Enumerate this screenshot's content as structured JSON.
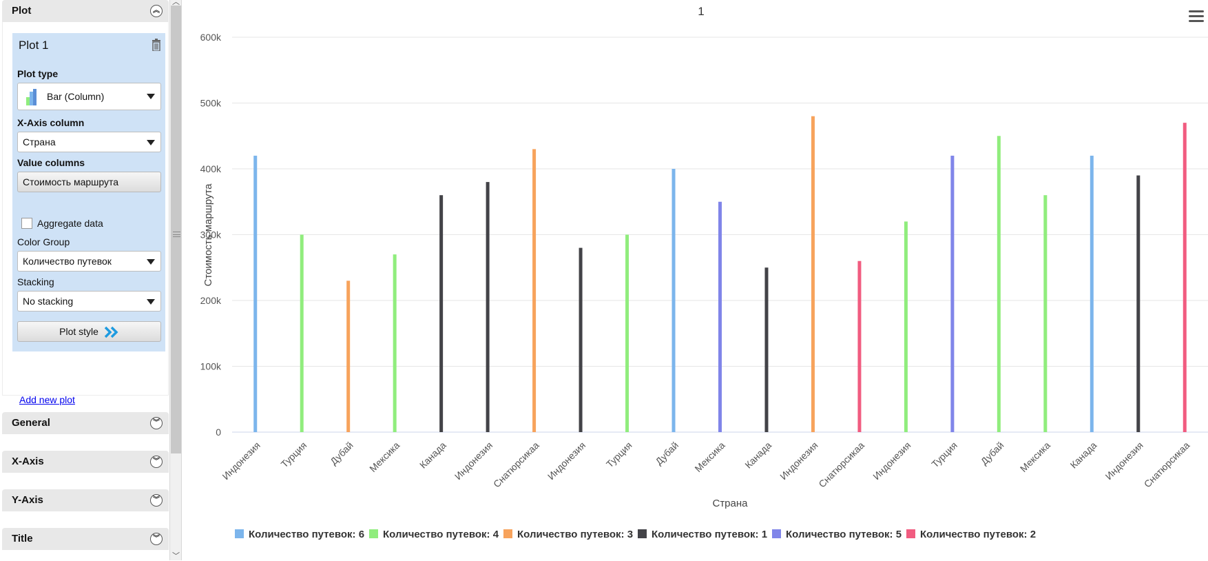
{
  "sidebar": {
    "sections": {
      "plot": "Plot",
      "general": "General",
      "xaxis": "X-Axis",
      "yaxis": "Y-Axis",
      "title": "Title"
    },
    "plot_card": {
      "title": "Plot 1",
      "plot_type_label": "Plot type",
      "plot_type_value": "Bar (Column)",
      "xaxis_column_label": "X-Axis column",
      "xaxis_column_value": "Страна",
      "value_columns_label": "Value columns",
      "value_column": "Стоимость маршрута",
      "aggregate_label": "Aggregate data",
      "aggregate_checked": false,
      "color_group_label": "Color Group",
      "color_group_value": "Количество путевок",
      "stacking_label": "Stacking",
      "stacking_value": "No stacking",
      "plot_style_button": "Plot style"
    },
    "add_plot_link": "Add new plot"
  },
  "chart_data": {
    "type": "bar",
    "title": "1",
    "xlabel": "Страна",
    "ylabel": "Стоимость маршрута",
    "ylim": [
      0,
      600000
    ],
    "y_ticks": [
      "0",
      "100k",
      "200k",
      "300k",
      "400k",
      "500k",
      "600k"
    ],
    "grid": true,
    "legend_position": "bottom",
    "categories": [
      "Индонезия",
      "Турция",
      "Дубай",
      "Мексика",
      "Канада",
      "Индонезия",
      "Снатюрсикаа",
      "Индонезия",
      "Турция",
      "Дубай",
      "Мексика",
      "Канада",
      "Индонезия",
      "Снатюрсикаа",
      "Индонезия",
      "Турция",
      "Дубай",
      "Мексика",
      "Канада",
      "Индонезия",
      "Снатюрсикаа"
    ],
    "values": [
      420000,
      300000,
      230000,
      270000,
      360000,
      380000,
      430000,
      280000,
      300000,
      400000,
      350000,
      250000,
      480000,
      260000,
      320000,
      420000,
      450000,
      360000,
      420000,
      390000,
      470000
    ],
    "groups": [
      "Количество путевок: 6",
      "Количество путевок: 4",
      "Количество путевок: 3",
      "Количество путевок: 4",
      "Количество путевок: 1",
      "Количество путевок: 1",
      "Количество путевок: 3",
      "Количество путевок: 1",
      "Количество путевок: 4",
      "Количество путевок: 6",
      "Количество путевок: 5",
      "Количество путевок: 1",
      "Количество путевок: 3",
      "Количество путевок: 2",
      "Количество путевок: 4",
      "Количество путевок: 5",
      "Количество путевок: 4",
      "Количество путевок: 4",
      "Количество путевок: 6",
      "Количество путевок: 1",
      "Количество путевок: 2"
    ],
    "series": [
      {
        "name": "Количество путевок: 6",
        "color": "#7cb5ec"
      },
      {
        "name": "Количество путевок: 4",
        "color": "#90ed7d"
      },
      {
        "name": "Количество путевок: 3",
        "color": "#f7a35c"
      },
      {
        "name": "Количество путевок: 1",
        "color": "#434348"
      },
      {
        "name": "Количество путевок: 5",
        "color": "#8085e9"
      },
      {
        "name": "Количество путевок: 2",
        "color": "#f15c80"
      }
    ]
  },
  "icons": {
    "trash": "trash-icon",
    "plot_type": "bar-chart-icon",
    "plot_style": "double-chevron-right-icon",
    "collapse": "double-chevron-up-icon",
    "expand": "double-chevron-down-icon",
    "chart_menu": "hamburger-menu-icon"
  }
}
